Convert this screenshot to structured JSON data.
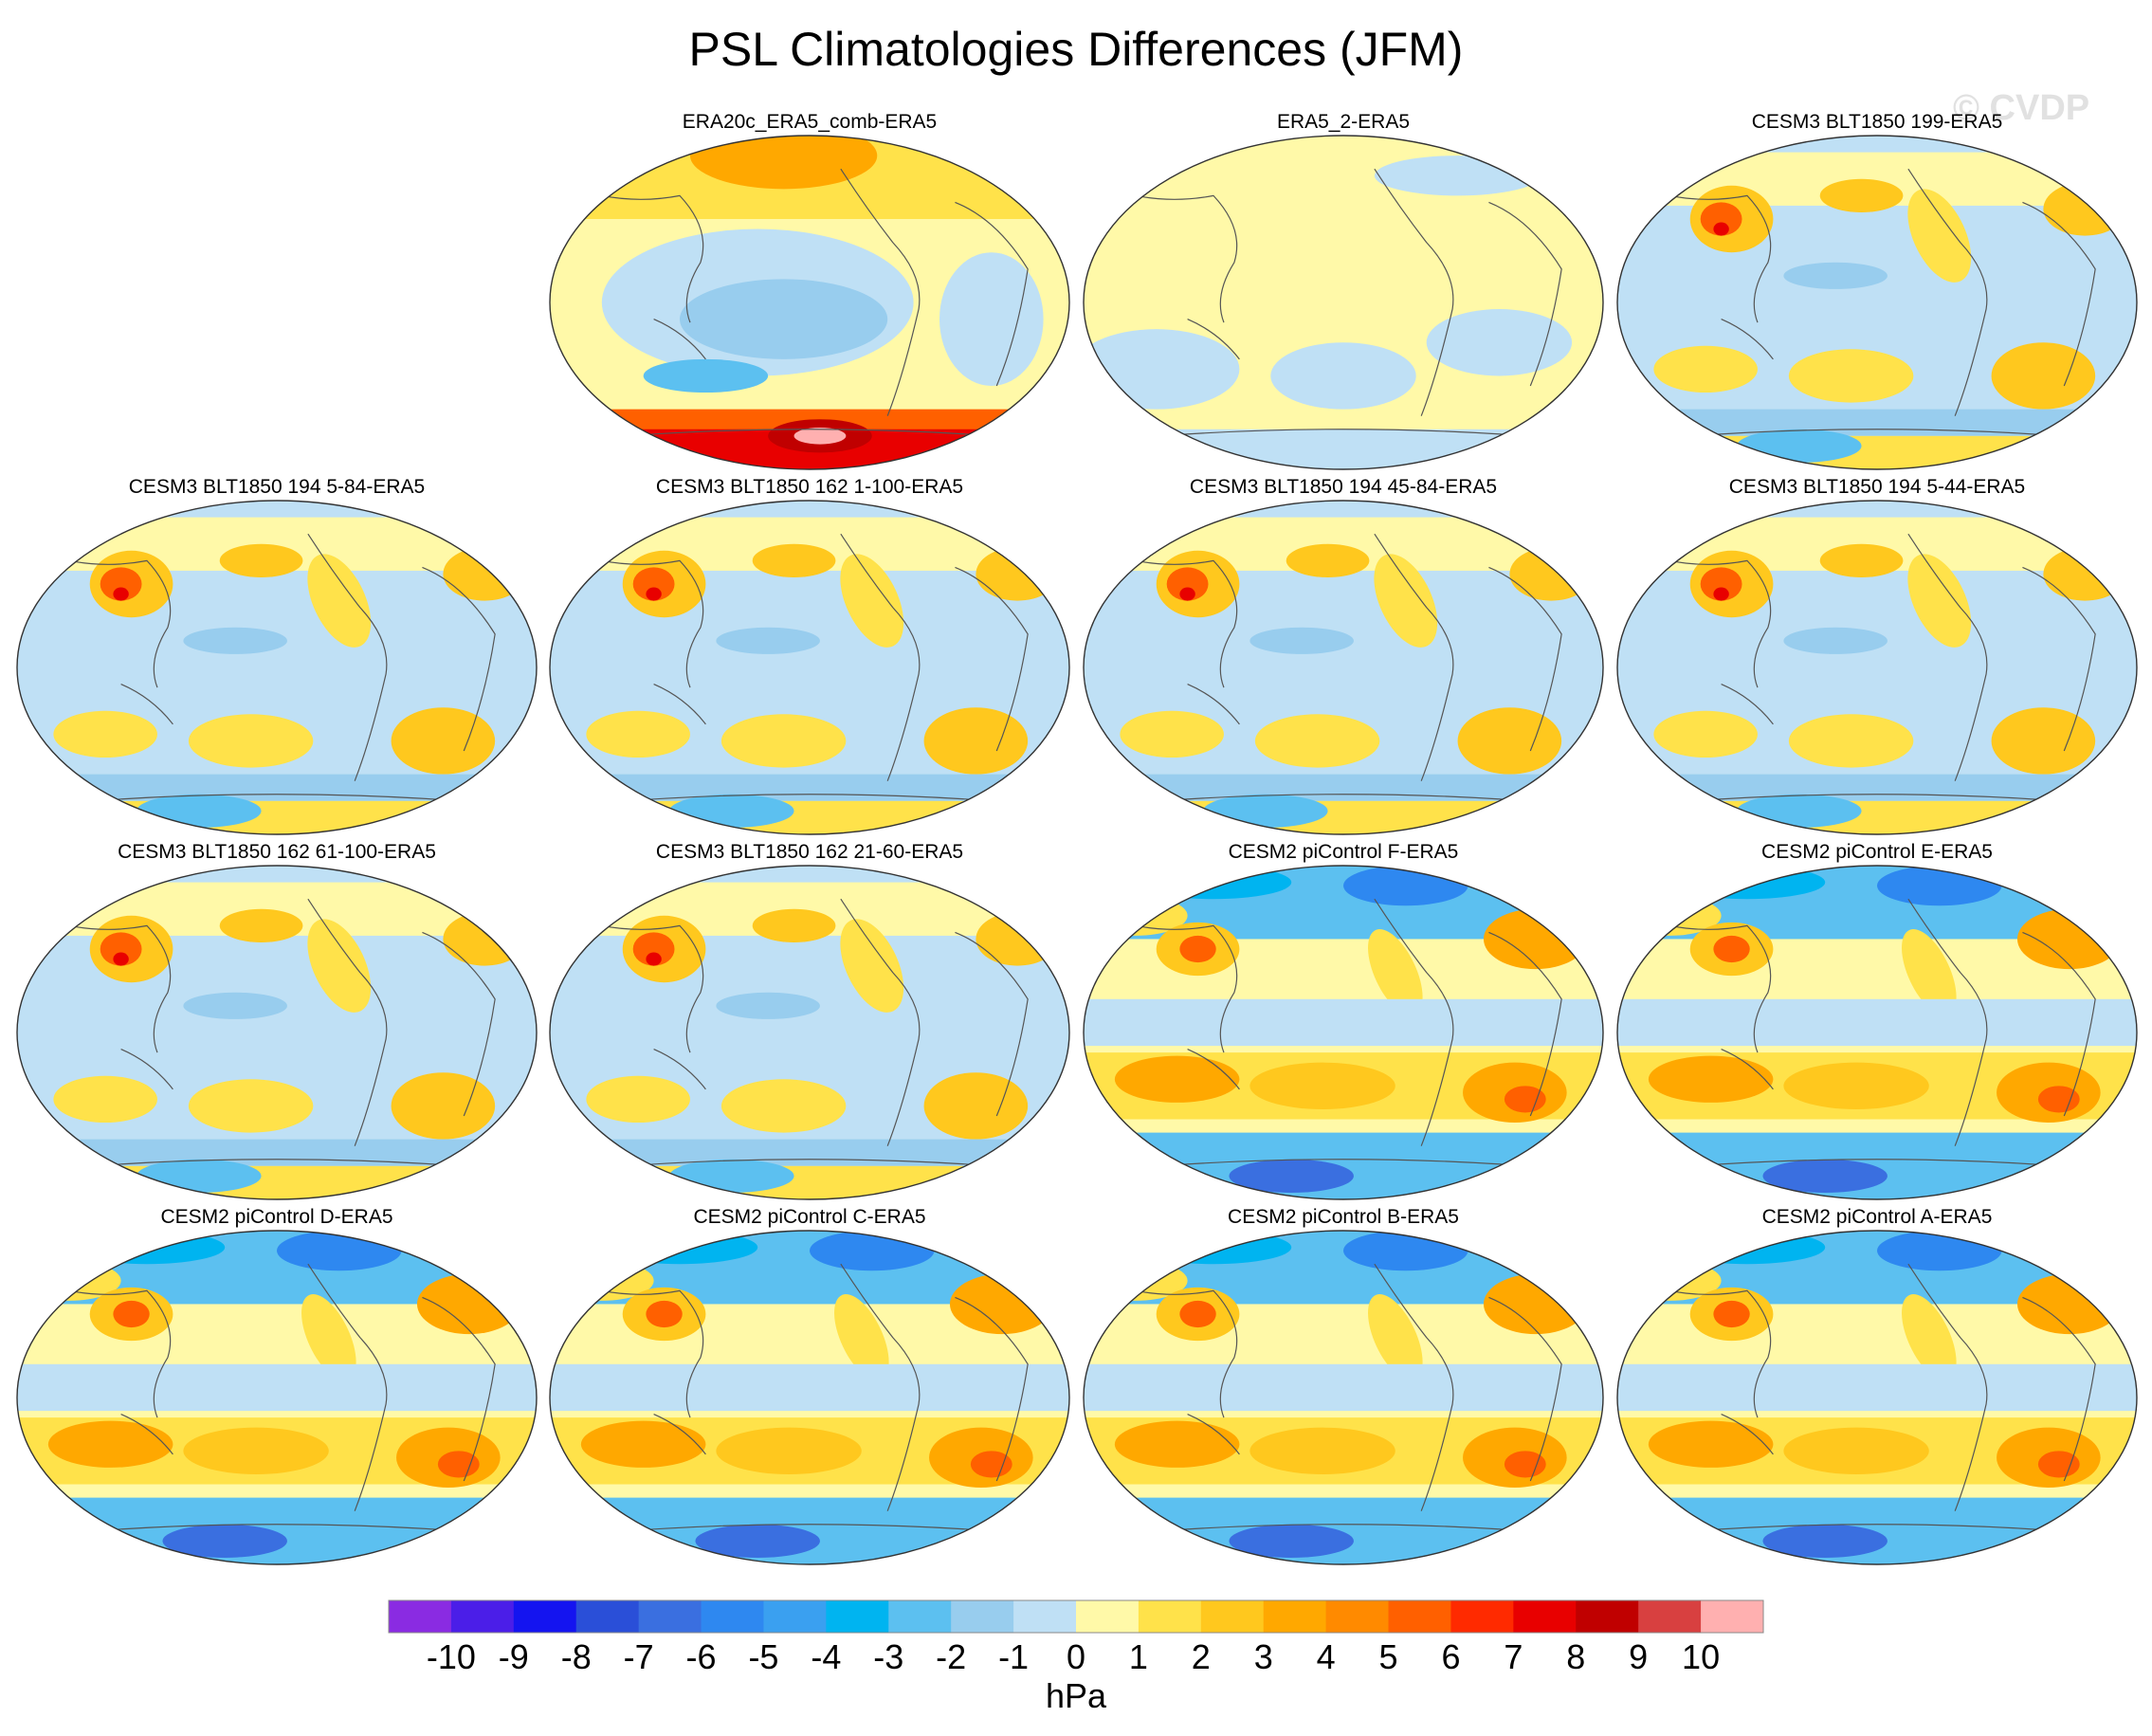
{
  "title": "PSL Climatologies Differences (JFM)",
  "watermark": "© CVDP",
  "panels": [
    {
      "name": "ERA20c_ERA5_comb-ERA5",
      "pattern": "era20c"
    },
    {
      "name": "ERA5_2-ERA5",
      "pattern": "era5_2"
    },
    {
      "name": "CESM3 BLT1850 199-ERA5",
      "pattern": "cesm3"
    },
    {
      "name": "CESM3 BLT1850 194 5-84-ERA5",
      "pattern": "cesm3"
    },
    {
      "name": "CESM3 BLT1850 162 1-100-ERA5",
      "pattern": "cesm3"
    },
    {
      "name": "CESM3 BLT1850 194 45-84-ERA5",
      "pattern": "cesm3"
    },
    {
      "name": "CESM3 BLT1850 194 5-44-ERA5",
      "pattern": "cesm3"
    },
    {
      "name": "CESM3 BLT1850 162 61-100-ERA5",
      "pattern": "cesm3"
    },
    {
      "name": "CESM3 BLT1850 162 21-60-ERA5",
      "pattern": "cesm3"
    },
    {
      "name": "CESM2 piControl F-ERA5",
      "pattern": "cesm2"
    },
    {
      "name": "CESM2 piControl E-ERA5",
      "pattern": "cesm2"
    },
    {
      "name": "CESM2 piControl D-ERA5",
      "pattern": "cesm2"
    },
    {
      "name": "CESM2 piControl C-ERA5",
      "pattern": "cesm2"
    },
    {
      "name": "CESM2 piControl B-ERA5",
      "pattern": "cesm2"
    },
    {
      "name": "CESM2 piControl A-ERA5",
      "pattern": "cesm2"
    }
  ],
  "colorbar": {
    "units": "hPa",
    "labels": [
      "-10",
      "-9",
      "-8",
      "-7",
      "-6",
      "-5",
      "-4",
      "-3",
      "-2",
      "-1",
      "0",
      "1",
      "2",
      "3",
      "4",
      "5",
      "6",
      "7",
      "8",
      "9",
      "10"
    ],
    "colors": [
      "#8a2be2",
      "#4b1ee8",
      "#1414f0",
      "#2a4fd8",
      "#3a6fe0",
      "#2e88f0",
      "#3aa0f0",
      "#00b4f0",
      "#5cc0f0",
      "#98cdee",
      "#bfe0f5",
      "#fff9a8",
      "#ffe24a",
      "#ffc81e",
      "#ffa800",
      "#ff8a00",
      "#ff6000",
      "#ff2a00",
      "#e80000",
      "#c00000",
      "#d84040",
      "#ffb0b0"
    ]
  }
}
